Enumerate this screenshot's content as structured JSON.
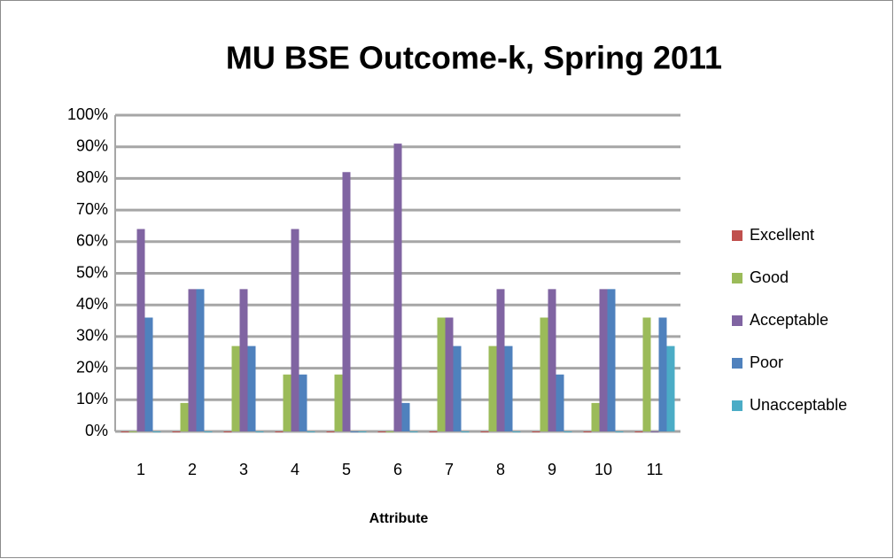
{
  "chart_data": {
    "type": "bar",
    "title": "MU BSE Outcome-k, Spring 2011",
    "x_label": "Attribute",
    "categories": [
      "1",
      "2",
      "3",
      "4",
      "5",
      "6",
      "7",
      "8",
      "9",
      "10",
      "11"
    ],
    "series": [
      {
        "name": "Excellent",
        "color": "#c0504d",
        "values": [
          0,
          0,
          0,
          0,
          0,
          0,
          0,
          0,
          0,
          0,
          0
        ]
      },
      {
        "name": "Good",
        "color": "#9bbb59",
        "values": [
          0,
          9,
          27,
          18,
          18,
          0,
          36,
          27,
          36,
          9,
          36
        ]
      },
      {
        "name": "Acceptable",
        "color": "#8064a2",
        "values": [
          64,
          45,
          45,
          64,
          82,
          91,
          36,
          45,
          45,
          45,
          0
        ]
      },
      {
        "name": "Poor",
        "color": "#4f81bd",
        "values": [
          36,
          45,
          27,
          18,
          0,
          9,
          27,
          27,
          18,
          45,
          36
        ]
      },
      {
        "name": "Unacceptable",
        "color": "#4bacc6",
        "values": [
          0,
          0,
          0,
          0,
          0,
          0,
          0,
          0,
          0,
          0,
          27
        ]
      }
    ],
    "ylim": [
      0,
      100
    ],
    "yticks": [
      {
        "value": 0,
        "label": "0%"
      },
      {
        "value": 10,
        "label": "10%"
      },
      {
        "value": 20,
        "label": "20%"
      },
      {
        "value": 30,
        "label": "30%"
      },
      {
        "value": 40,
        "label": "40%"
      },
      {
        "value": 50,
        "label": "50%"
      },
      {
        "value": 60,
        "label": "60%"
      },
      {
        "value": 70,
        "label": "70%"
      },
      {
        "value": 80,
        "label": "80%"
      },
      {
        "value": 90,
        "label": "90%"
      },
      {
        "value": 100,
        "label": "100%"
      }
    ],
    "grid": true,
    "legend": "right"
  }
}
